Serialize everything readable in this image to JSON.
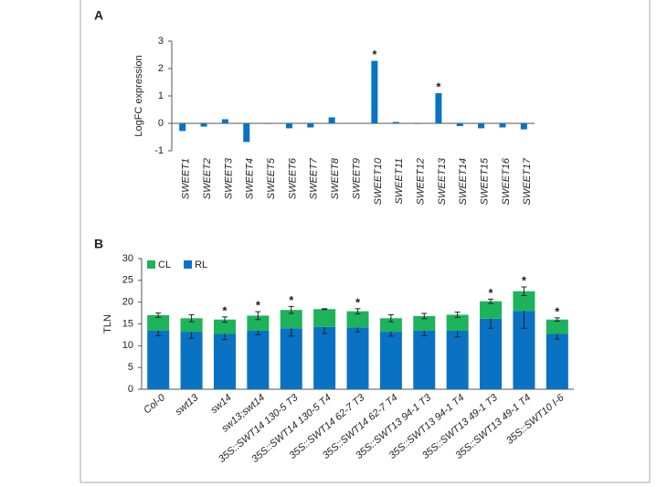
{
  "chart_data": [
    {
      "type": "bar",
      "panel_label": "A",
      "y_label": "LogFC expression",
      "color": "#0a72c2",
      "categories": [
        "SWEET1",
        "SWEET2",
        "SWEET3",
        "SWEET4",
        "SWEET5",
        "SWEET6",
        "SWEET7",
        "SWEET8",
        "SWEET9",
        "SWEET10",
        "SWEET11",
        "SWEET12",
        "SWEET13",
        "SWEET14",
        "SWEET15",
        "SWEET16",
        "SWEET17"
      ],
      "values": [
        -0.28,
        -0.12,
        0.15,
        -0.68,
        -0.02,
        -0.18,
        -0.15,
        0.22,
        0,
        2.28,
        0.05,
        -0.02,
        1.1,
        -0.1,
        -0.18,
        -0.15,
        -0.22
      ],
      "significance": [
        null,
        null,
        null,
        null,
        null,
        null,
        null,
        null,
        null,
        "*",
        null,
        null,
        "*",
        null,
        null,
        null,
        null
      ],
      "ylim": [
        -1,
        3
      ],
      "yticks": [
        -1,
        0,
        1,
        2,
        3
      ],
      "grid": false
    },
    {
      "type": "stacked-bar",
      "panel_label": "B",
      "y_label": "TLN",
      "legend": "top-left",
      "categories": [
        "Col-0",
        "swt13",
        "sw14",
        "sw13;swt14",
        "35S::SWT14 130-5 T3",
        "35S::SWT14 130-5 T4",
        "35S::SWT14 62-7 T3",
        "35S::SWT14 62-7 T4",
        "35S::SWT13 94-1 T3",
        "35S::SWT13 94-1 T4",
        "35S::SWT13 49-1 T3",
        "35S::SWT13 49-1 T4",
        "35S::SWT10 I-6"
      ],
      "series": [
        {
          "name": "CL",
          "color": "#1db35b",
          "values": [
            3.5,
            3.1,
            3.3,
            3.4,
            4.2,
            4.1,
            3.7,
            3.1,
            3.3,
            3.6,
            4.0,
            4.5,
            3.3
          ],
          "errors": [
            0.5,
            0.8,
            0.6,
            0.9,
            0.8,
            0.1,
            0.6,
            0.8,
            0.6,
            0.6,
            0.5,
            1.0,
            0.4
          ]
        },
        {
          "name": "RL",
          "color": "#0a72c2",
          "values": [
            13.5,
            13.2,
            12.7,
            13.5,
            14.0,
            14.3,
            14.2,
            13.2,
            13.5,
            13.5,
            16.2,
            18.0,
            12.7
          ],
          "errors": [
            1.2,
            1.5,
            1.3,
            1.0,
            1.8,
            1.5,
            1.0,
            1.0,
            1.2,
            1.5,
            2.2,
            4.0,
            1.2
          ]
        }
      ],
      "significance": [
        null,
        null,
        "*",
        "*",
        "*",
        null,
        "*",
        null,
        null,
        null,
        "*",
        "*",
        "*"
      ],
      "ylim": [
        0,
        30
      ],
      "yticks": [
        0,
        5,
        10,
        15,
        20,
        25,
        30
      ],
      "grid": false
    }
  ]
}
